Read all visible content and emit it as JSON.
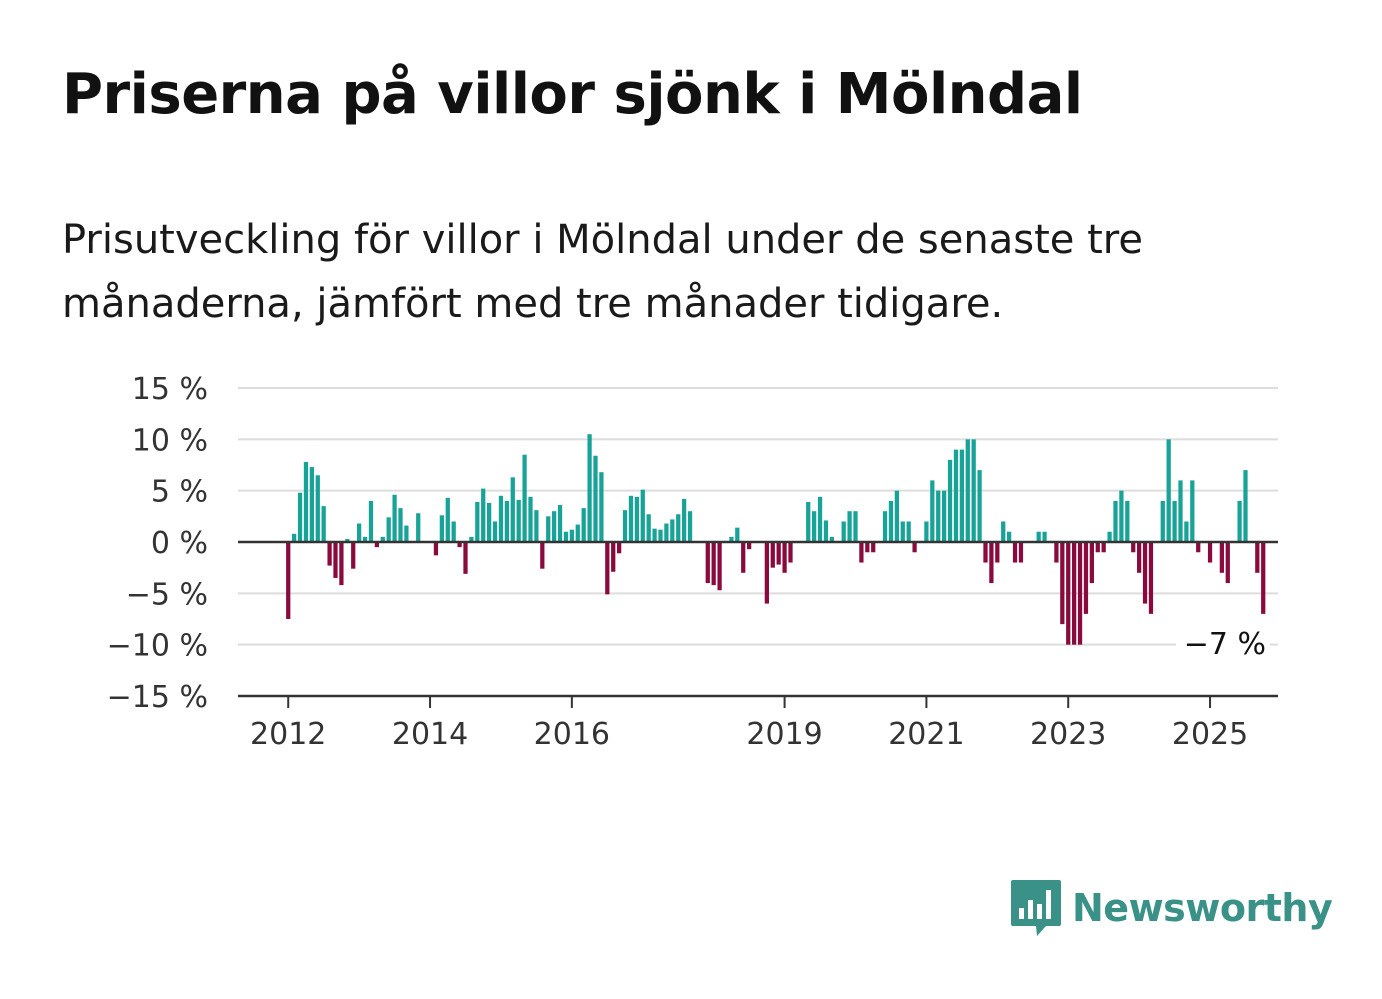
{
  "title": "Priserna på villor sjönk i Mölndal",
  "subtitle": "Prisutveckling för villor i Mölndal under de senaste tre månaderna, jämfört med tre månader tidigare.",
  "brand": {
    "name": "Newsworthy",
    "color": "#3a9187",
    "icon": "bar-chart-speech-bubble-icon"
  },
  "colors": {
    "positive": "#17a398",
    "negative": "#8a0a3e",
    "grid": "#dddddd",
    "axis": "#333333"
  },
  "chart_data": {
    "type": "bar",
    "title": "",
    "xlabel": "",
    "ylabel": "",
    "ylim": [
      -15,
      15
    ],
    "y_ticks": [
      15,
      10,
      5,
      0,
      -5,
      -10,
      -15
    ],
    "y_tick_labels": [
      "15 %",
      "10 %",
      "5 %",
      "0 %",
      "−5 %",
      "−10 %",
      "−15 %"
    ],
    "x_tick_labels": [
      {
        "label": "2012",
        "x": "2012-01"
      },
      {
        "label": "2014",
        "x": "2014-01"
      },
      {
        "label": "2016",
        "x": "2016-01"
      },
      {
        "label": "2019",
        "x": "2019-01"
      },
      {
        "label": "2021",
        "x": "2021-01"
      },
      {
        "label": "2023",
        "x": "2023-01"
      },
      {
        "label": "2025",
        "x": "2025-01"
      }
    ],
    "x_start": "2011-05",
    "x_end": "2025-12",
    "first_period": "2012-01",
    "grid": true,
    "legend": "none",
    "last_value_label": "−7 %",
    "values": [
      -7.5,
      0.8,
      4.8,
      7.8,
      7.3,
      6.5,
      3.5,
      -2.3,
      -3.5,
      -4.2,
      0.3,
      -2.6,
      1.8,
      0.5,
      4.0,
      -0.5,
      0.5,
      2.4,
      4.6,
      3.3,
      1.6,
      0,
      2.8,
      0,
      0,
      -1.3,
      2.6,
      4.3,
      2.0,
      -0.5,
      -3.1,
      0.5,
      3.9,
      5.2,
      3.8,
      2.0,
      4.5,
      4.0,
      6.3,
      4.1,
      8.5,
      4.4,
      3.1,
      -2.6,
      2.5,
      3.0,
      3.6,
      1.0,
      1.2,
      1.7,
      3.3,
      10.5,
      8.4,
      6.8,
      -5.1,
      -2.9,
      -1.1,
      3.1,
      4.5,
      4.4,
      5.1,
      2.7,
      1.3,
      1.2,
      1.8,
      2.2,
      2.7,
      4.2,
      3.0,
      0,
      0,
      -4.0,
      -4.2,
      -4.7,
      0,
      0.5,
      1.4,
      -3.0,
      -0.7,
      0,
      0,
      -6.0,
      -2.5,
      -2.2,
      -3.0,
      -2.0,
      0,
      0,
      3.9,
      3.0,
      4.4,
      2.1,
      0.5,
      0,
      2.0,
      3.0,
      3.0,
      -2.0,
      -1.0,
      -1.0,
      0,
      3.0,
      4.0,
      5.0,
      2.0,
      2.0,
      -1.0,
      0,
      2.0,
      6.0,
      5.0,
      5.0,
      8.0,
      9.0,
      9.0,
      10.0,
      10.0,
      7.0,
      -2.0,
      -4.0,
      -2.0,
      2.0,
      1.0,
      -2.0,
      -2.0,
      0,
      0,
      1.0,
      1.0,
      0,
      -2.0,
      -8.0,
      -10.0,
      -10.0,
      -10.0,
      -7.0,
      -4.0,
      -1.0,
      -1.0,
      1.0,
      4.0,
      5.0,
      4.0,
      -1.0,
      -3.0,
      -6.0,
      -7.0,
      0,
      4.0,
      10.0,
      4.0,
      6.0,
      2.0,
      6.0,
      -1.0,
      0,
      -2.0,
      0,
      -3.0,
      -4.0,
      0,
      4.0,
      7.0,
      0,
      -3.0,
      -7.0
    ]
  }
}
